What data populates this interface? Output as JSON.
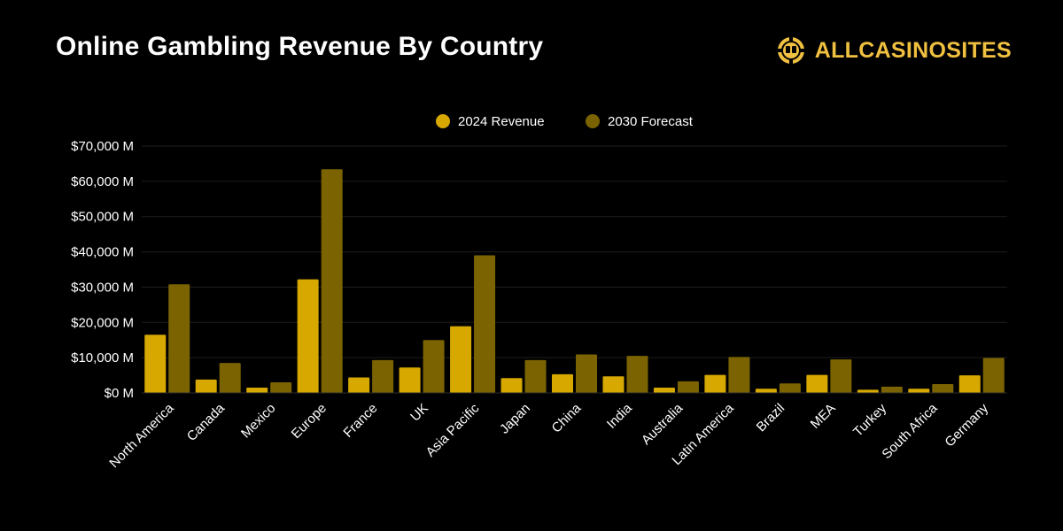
{
  "header": {
    "title": "Online Gambling Revenue By Country",
    "brand": "ALLCASINOSITES",
    "brand_icon": "casino-chip-icon"
  },
  "colors": {
    "background": "#000000",
    "series_2024": "#d6a800",
    "series_2030": "#7a6300",
    "brand": "#f0c040",
    "gridline": "#1e1e1e"
  },
  "chart_data": {
    "type": "bar",
    "title": "Online Gambling Revenue By Country",
    "xlabel": "",
    "ylabel": "",
    "ylim": [
      0,
      70000
    ],
    "y_ticks": [
      0,
      10000,
      20000,
      30000,
      40000,
      50000,
      60000,
      70000
    ],
    "y_tick_labels": [
      "$0 M",
      "$10,000 M",
      "$20,000 M",
      "$30,000 M",
      "$40,000 M",
      "$50,000 M",
      "$60,000 M",
      "$70,000 M"
    ],
    "legend_position": "top-center",
    "grid": true,
    "categories": [
      "North America",
      "Canada",
      "Mexico",
      "Europe",
      "France",
      "UK",
      "Asia Pacific",
      "Japan",
      "China",
      "India",
      "Australia",
      "Latin America",
      "Brazil",
      "MEA",
      "Turkey",
      "South Africa",
      "Germany"
    ],
    "series": [
      {
        "name": "2024 Revenue",
        "values": [
          16500,
          3800,
          1500,
          32200,
          4400,
          7200,
          18900,
          4200,
          5300,
          4700,
          1500,
          5100,
          1200,
          5100,
          900,
          1200,
          5000
        ]
      },
      {
        "name": "2030 Forecast",
        "values": [
          30800,
          8500,
          3000,
          63400,
          9300,
          15000,
          39000,
          9300,
          10900,
          10500,
          3300,
          10200,
          2700,
          9500,
          1800,
          2500,
          9900
        ]
      }
    ]
  }
}
